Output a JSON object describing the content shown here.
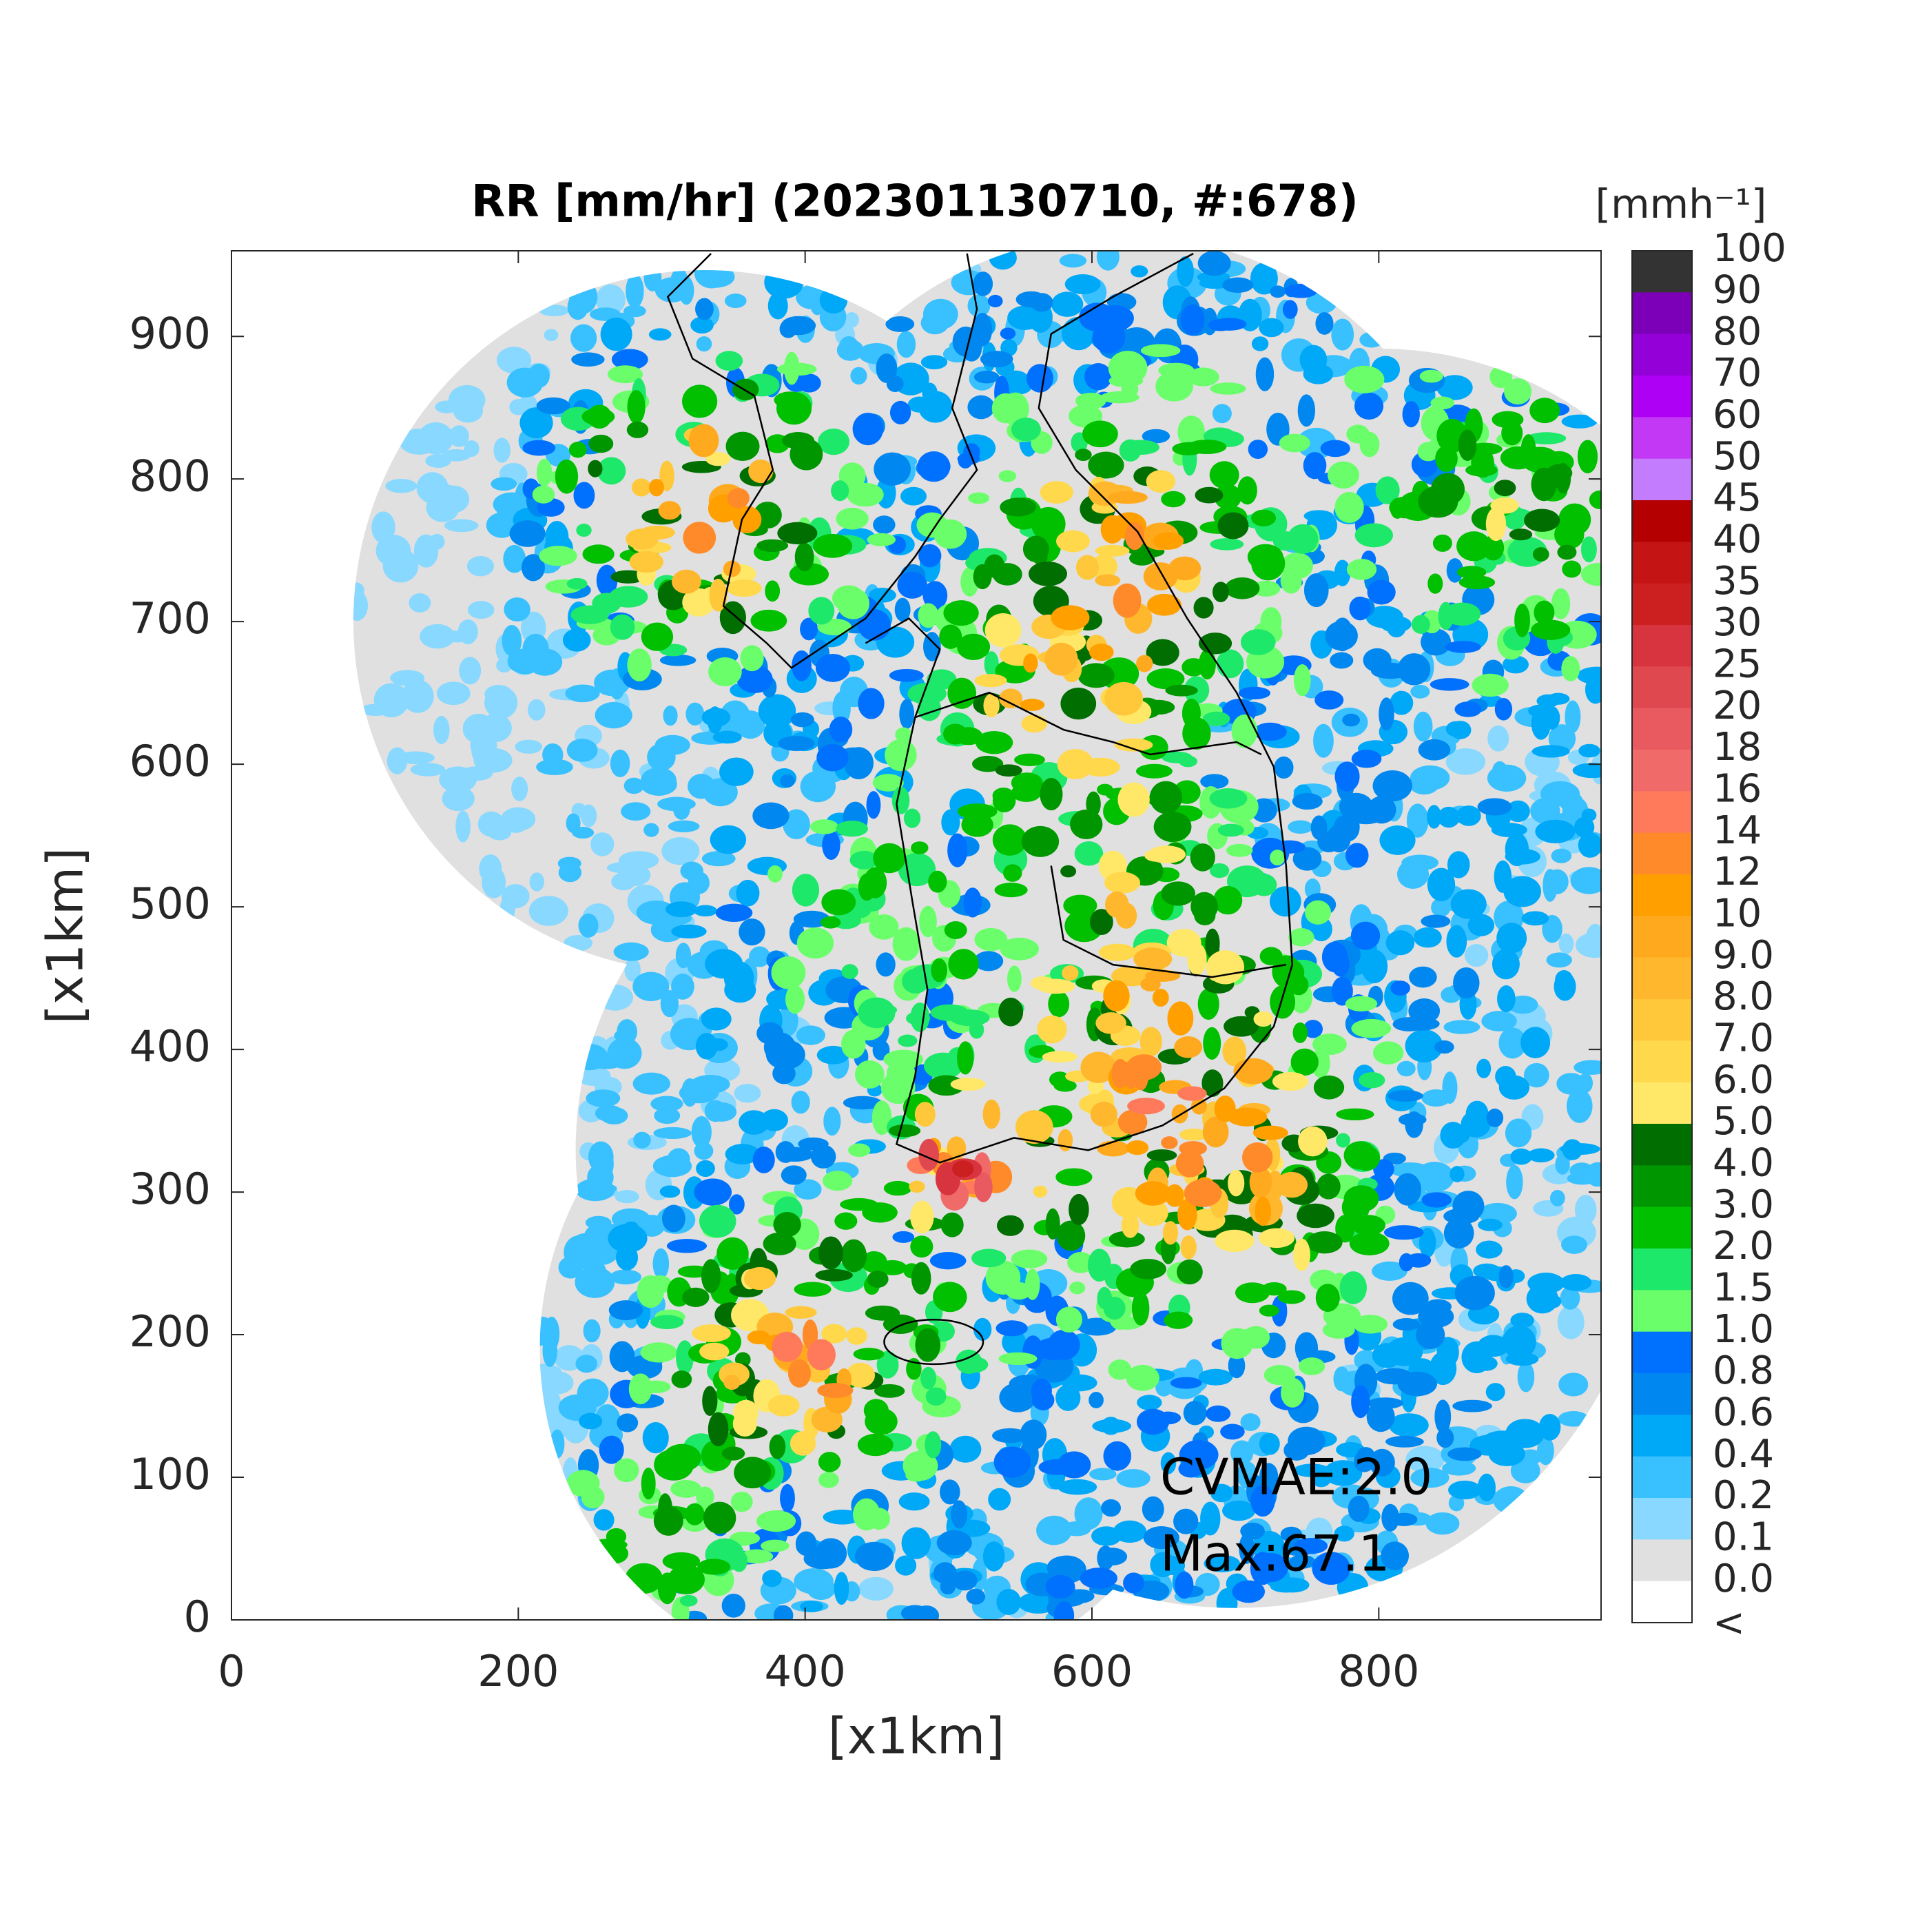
{
  "chart_data": {
    "type": "map",
    "title": "RR [mm/hr] (202301130710, #:678)",
    "xlabel": "[x1km]",
    "ylabel": "[x1km]",
    "xlim": [
      0,
      955
    ],
    "ylim": [
      0,
      960
    ],
    "xticks": [
      0,
      200,
      400,
      600,
      800
    ],
    "yticks": [
      0,
      100,
      200,
      300,
      400,
      500,
      600,
      700,
      800,
      900
    ],
    "annotations": [
      "CVMAE:2.0",
      "Max:67.1"
    ],
    "colorbar": {
      "label": "[mmh⁻¹]",
      "levels": [
        100,
        90,
        80,
        70,
        60,
        50,
        45,
        40,
        35,
        30,
        25,
        20,
        18,
        16,
        14,
        12,
        10,
        {
          "value": 9,
          "label": "9.0"
        },
        {
          "value": 8,
          "label": "8.0"
        },
        {
          "value": 7,
          "label": "7.0"
        },
        {
          "value": 6,
          "label": "6.0"
        },
        {
          "value": 5,
          "label": "5.0"
        },
        {
          "value": 4,
          "label": "4.0"
        },
        {
          "value": 3,
          "label": "3.0"
        },
        {
          "value": 2,
          "label": "2.0"
        },
        1.5,
        {
          "value": 1,
          "label": "1.0"
        },
        0.8,
        0.6,
        0.4,
        0.2,
        0.1,
        {
          "value": 0,
          "label": "0.0"
        }
      ],
      "below_label": "<",
      "colors": [
        "#333333",
        "#7b00b8",
        "#9400d8",
        "#ae00f5",
        "#c238f5",
        "#c47cff",
        "#b40000",
        "#c41414",
        "#cc2020",
        "#d83440",
        "#e04850",
        "#e85a60",
        "#f06a6a",
        "#ff7a5a",
        "#ff8a2a",
        "#ffa000",
        "#ffaa1e",
        "#ffb82e",
        "#ffc83a",
        "#ffd84c",
        "#ffe868",
        "#006e00",
        "#009600",
        "#00c000",
        "#1ee86a",
        "#6aff6a",
        "#0070ff",
        "#0088f0",
        "#00a8f8",
        "#38c0ff",
        "#88d8ff",
        "#e0e0e0",
        "#ffffff"
      ]
    }
  }
}
